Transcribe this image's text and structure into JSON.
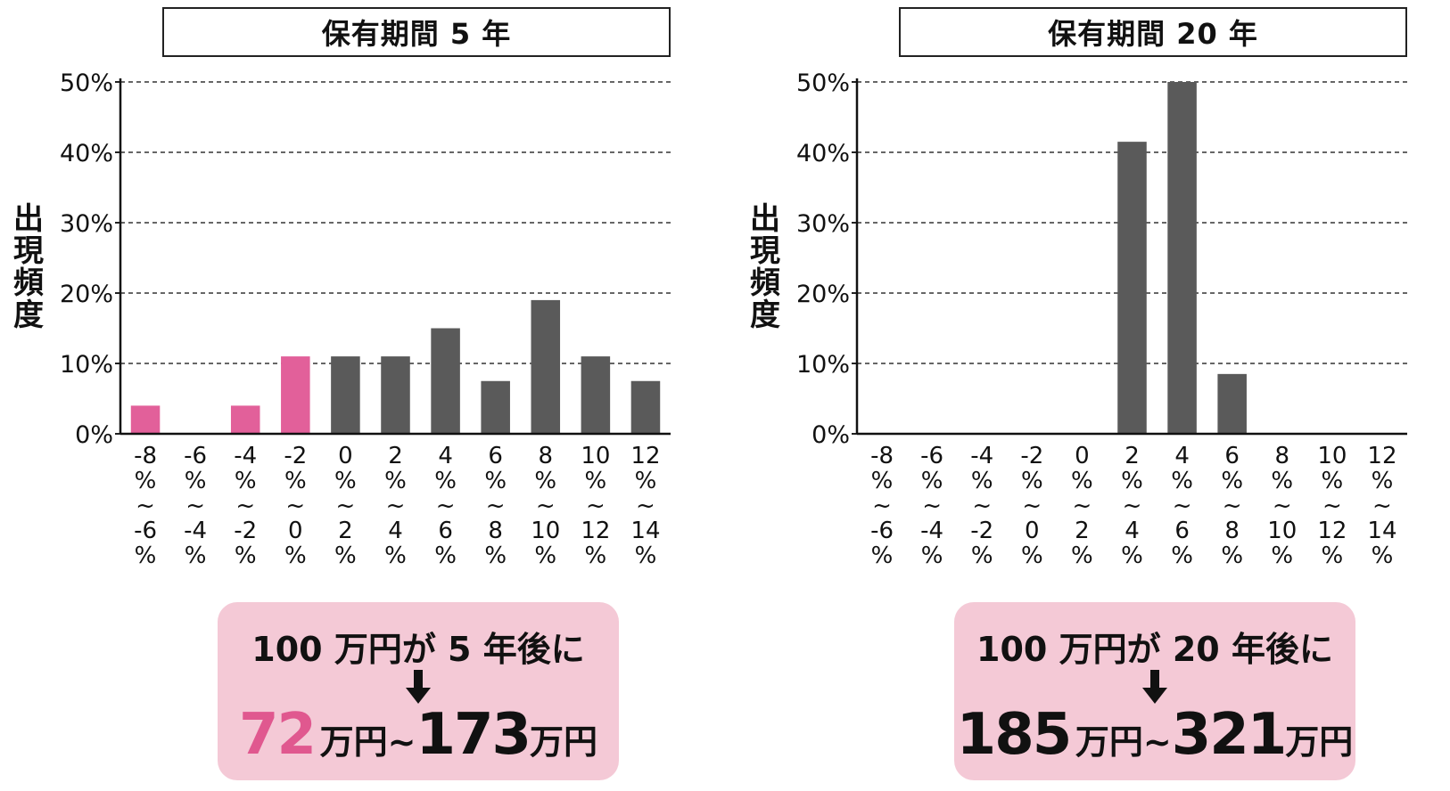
{
  "chart_data": [
    {
      "type": "bar",
      "title": "保有期間 5 年",
      "ylabel": "出現頻度",
      "ylim": [
        0,
        50
      ],
      "yticks": [
        "0%",
        "10%",
        "20%",
        "30%",
        "40%",
        "50%"
      ],
      "categories": [
        [
          "-8",
          "%",
          "~",
          "-6",
          "%"
        ],
        [
          "-6",
          "%",
          "~",
          "-4",
          "%"
        ],
        [
          "-4",
          "%",
          "~",
          "-2",
          "%"
        ],
        [
          "-2",
          "%",
          "~",
          "0",
          "%"
        ],
        [
          "0",
          "%",
          "~",
          "2",
          "%"
        ],
        [
          "2",
          "%",
          "~",
          "4",
          "%"
        ],
        [
          "4",
          "%",
          "~",
          "6",
          "%"
        ],
        [
          "6",
          "%",
          "~",
          "8",
          "%"
        ],
        [
          "8",
          "%",
          "~",
          "10",
          "%"
        ],
        [
          "10",
          "%",
          "~",
          "12",
          "%"
        ],
        [
          "12",
          "%",
          "~",
          "14",
          "%"
        ]
      ],
      "values": [
        4,
        0,
        4,
        11,
        11,
        11,
        15,
        7.5,
        19,
        11,
        7.5
      ],
      "bar_colors": [
        "#e2609a",
        "#e2609a",
        "#e2609a",
        "#e2609a",
        "#5a5a5a",
        "#5a5a5a",
        "#5a5a5a",
        "#5a5a5a",
        "#5a5a5a",
        "#5a5a5a",
        "#5a5a5a"
      ],
      "grid": "dashed",
      "summary": {
        "line1": "100 万円が 5 年後に",
        "low": "72",
        "low_color": "#e0588f",
        "unit1": "万円",
        "tilde": "~",
        "high": "173",
        "unit2": "万円"
      }
    },
    {
      "type": "bar",
      "title": "保有期間 20 年",
      "ylabel": "出現頻度",
      "ylim": [
        0,
        50
      ],
      "yticks": [
        "0%",
        "10%",
        "20%",
        "30%",
        "40%",
        "50%"
      ],
      "categories": [
        [
          "-8",
          "%",
          "~",
          "-6",
          "%"
        ],
        [
          "-6",
          "%",
          "~",
          "-4",
          "%"
        ],
        [
          "-4",
          "%",
          "~",
          "-2",
          "%"
        ],
        [
          "-2",
          "%",
          "~",
          "0",
          "%"
        ],
        [
          "0",
          "%",
          "~",
          "2",
          "%"
        ],
        [
          "2",
          "%",
          "~",
          "4",
          "%"
        ],
        [
          "4",
          "%",
          "~",
          "6",
          "%"
        ],
        [
          "6",
          "%",
          "~",
          "8",
          "%"
        ],
        [
          "8",
          "%",
          "~",
          "10",
          "%"
        ],
        [
          "10",
          "%",
          "~",
          "12",
          "%"
        ],
        [
          "12",
          "%",
          "~",
          "14",
          "%"
        ]
      ],
      "values": [
        0,
        0,
        0,
        0,
        0,
        41.5,
        50,
        8.5,
        0,
        0,
        0
      ],
      "bar_colors": [
        "#5a5a5a",
        "#5a5a5a",
        "#5a5a5a",
        "#5a5a5a",
        "#5a5a5a",
        "#5a5a5a",
        "#5a5a5a",
        "#5a5a5a",
        "#5a5a5a",
        "#5a5a5a",
        "#5a5a5a"
      ],
      "grid": "dashed",
      "summary": {
        "line1": "100 万円が 20 年後に",
        "low": "185",
        "low_color": "#111111",
        "unit1": "万円",
        "tilde": "~",
        "high": "321",
        "unit2": "万円"
      }
    }
  ]
}
